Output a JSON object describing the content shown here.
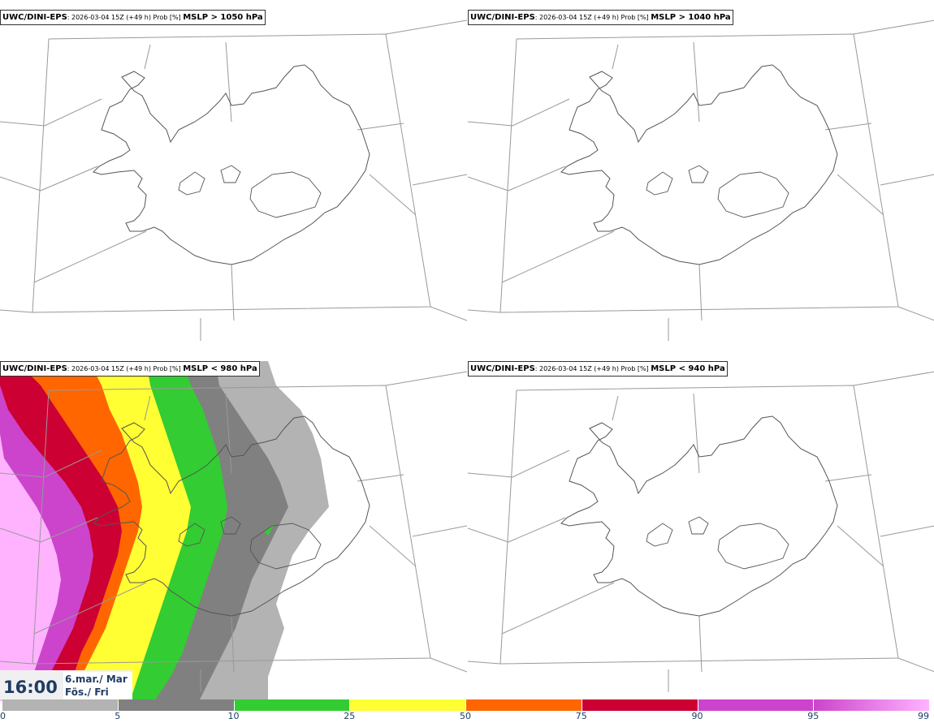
{
  "panels": [
    {
      "source": "UWC/DINI-EPS",
      "meta": ": 2026-03-04 15Z (+49 h) Prob [%] ",
      "variable": "MSLP > 1050 hPa",
      "has_field": false
    },
    {
      "source": "UWC/DINI-EPS",
      "meta": ": 2026-03-04 15Z (+49 h) Prob [%] ",
      "variable": "MSLP > 1040 hPa",
      "has_field": false
    },
    {
      "source": "UWC/DINI-EPS",
      "meta": ": 2026-03-04 15Z (+49 h) Prob [%] ",
      "variable": "MSLP < 980 hPa",
      "has_field": true
    },
    {
      "source": "UWC/DINI-EPS",
      "meta": ": 2026-03-04 15Z (+49 h) Prob [%] ",
      "variable": "MSLP < 940 hPa",
      "has_field": false
    }
  ],
  "valid_time": {
    "time": "16:00",
    "date": "6.mar./ Mar",
    "day": "Fös./ Fri"
  },
  "colorbar": {
    "ticks": [
      "0",
      "5",
      "10",
      "25",
      "50",
      "75",
      "90",
      "95",
      "99"
    ],
    "colors": [
      "#ffffff",
      "#b3b3b3",
      "#808080",
      "#33cc33",
      "#ffff33",
      "#ff6600",
      "#cc0033",
      "#cc44cc",
      "#ffb3ff"
    ]
  }
}
